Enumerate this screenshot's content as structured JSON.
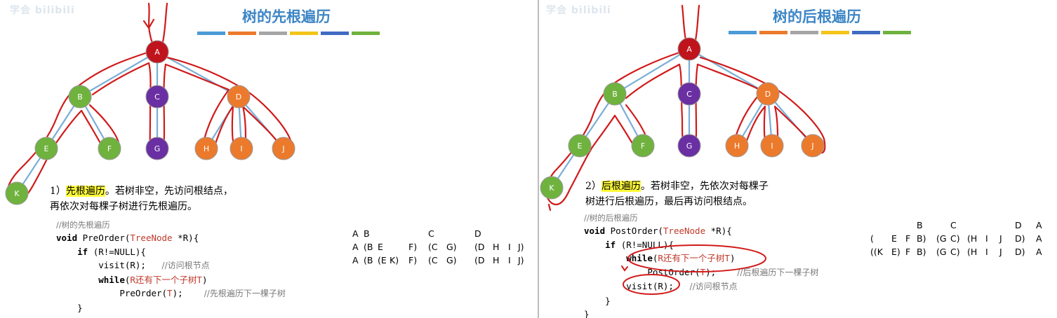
{
  "watermark": {
    "text": "bilibili",
    "sub": "学会"
  },
  "left": {
    "title": "树的先根遍历",
    "desc_prefix": "1）",
    "desc_highlight": "先根遍历",
    "desc_rest1": "。若树非空，先访问根结点，",
    "desc_line2": "再依次对每棵子树进行先根遍历。",
    "code_comment_title": "//树的先根遍历",
    "code": {
      "l1_kw": "void",
      "l1_a": " PreOrder(",
      "l1_ty": "TreeNode",
      "l1_b": " *R){",
      "l2_kw": "if",
      "l2_rest": " (R!=NULL){",
      "l3_code": "visit(R);",
      "l3_cm": "//访问根节点",
      "l4_kw": "while",
      "l4_a": "(",
      "l4_ty": "R还有下一个子树T",
      "l4_b": ")",
      "l5_a": "PreOrder(",
      "l5_ty": "T",
      "l5_b": ");",
      "l5_cm": "//先根遍历下一棵子树",
      "l6": "}"
    },
    "sequence": [
      [
        "A",
        "B",
        "",
        "",
        "",
        "C",
        "",
        "D",
        "",
        "",
        ""
      ],
      [
        "A",
        "(B",
        "E",
        "",
        "F)",
        "(C",
        "G)",
        "(D",
        "H",
        "I",
        "J)"
      ],
      [
        "A",
        "(B",
        "(E",
        "K)",
        "F)",
        "(C",
        "G)",
        "(D",
        "H",
        "I",
        "J)"
      ]
    ]
  },
  "right": {
    "title": "树的后根遍历",
    "desc_prefix": "2）",
    "desc_highlight": "后根遍历",
    "desc_rest1": "。若树非空，先依次对每棵子",
    "desc_line2": "树进行后根遍历，最后再访问根结点。",
    "code_comment_title": "//树的后根遍历",
    "code": {
      "l1_kw": "void",
      "l1_a": " PostOrder(",
      "l1_ty": "TreeNode",
      "l1_b": " *R){",
      "l2_kw": "if",
      "l2_rest": " (R!=NULL){",
      "l3_kw": "while",
      "l3_a": "(",
      "l3_ty": "R还有下一个子树T",
      "l3_b": ")",
      "l4_a": "PostOrder(",
      "l4_ty": "T",
      "l4_b": ");",
      "l4_cm": "//后根遍历下一棵子树",
      "l5_code": "visit(R);",
      "l5_cm": "//访问根节点",
      "l6": "}",
      "l7": "}"
    },
    "sequence": [
      [
        "",
        "",
        "",
        "B",
        "",
        "C",
        "",
        "",
        "",
        "D",
        "A"
      ],
      [
        "(",
        "E",
        "F",
        "B)",
        "(G",
        "C)",
        "(H",
        "I",
        "J",
        "D)",
        "A"
      ],
      [
        "((K",
        "E)",
        "F",
        "B)",
        "(G",
        "C)",
        "(H",
        "I",
        "J",
        "D)",
        "A"
      ]
    ]
  },
  "tree": {
    "nodes": [
      {
        "id": "A",
        "label": "A",
        "color": "#c0141d"
      },
      {
        "id": "B",
        "label": "B",
        "color": "#6fb23e"
      },
      {
        "id": "C",
        "label": "C",
        "color": "#6a2fa2"
      },
      {
        "id": "D",
        "label": "D",
        "color": "#ec7a2c"
      },
      {
        "id": "E",
        "label": "E",
        "color": "#6fb23e"
      },
      {
        "id": "F",
        "label": "F",
        "color": "#6fb23e"
      },
      {
        "id": "G",
        "label": "G",
        "color": "#6a2fa2"
      },
      {
        "id": "H",
        "label": "H",
        "color": "#ec7a2c"
      },
      {
        "id": "I",
        "label": "I",
        "color": "#ec7a2c"
      },
      {
        "id": "J",
        "label": "J",
        "color": "#ec7a2c"
      },
      {
        "id": "K",
        "label": "K",
        "color": "#6fb23e"
      }
    ],
    "edges": [
      [
        "A",
        "B"
      ],
      [
        "A",
        "C"
      ],
      [
        "A",
        "D"
      ],
      [
        "B",
        "E"
      ],
      [
        "B",
        "F"
      ],
      [
        "C",
        "G"
      ],
      [
        "D",
        "H"
      ],
      [
        "D",
        "I"
      ],
      [
        "D",
        "J"
      ],
      [
        "E",
        "K"
      ]
    ],
    "edge_color": "#7aaed6",
    "annotation_color": "#d11a1a"
  },
  "colorbar": [
    "#4a9bd6",
    "#ec7a2c",
    "#a5a5a5",
    "#f3c419",
    "#3f6bc2",
    "#6fb23e"
  ]
}
